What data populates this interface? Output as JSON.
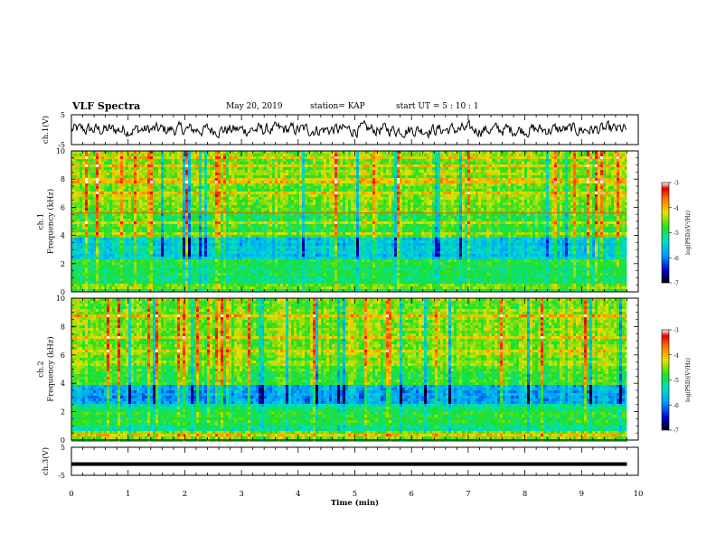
{
  "header": {
    "title": "VLF Spectra",
    "date": "May 20, 2019",
    "station": "station= KAP",
    "start": "start  UT =   5 : 10 : 1"
  },
  "chart_data": [
    {
      "type": "line",
      "name": "ch1-waveform",
      "ylabel": "ch.1(V)",
      "ylim": [
        -5,
        5
      ],
      "yticks": [
        "5",
        "-5"
      ],
      "xlim": [
        0,
        10
      ],
      "x_extent_data": [
        0,
        9.8
      ],
      "noise_amplitude_V": 2.5
    },
    {
      "type": "heatmap",
      "name": "ch1-spectrogram",
      "ylabel": "ch.1\nFrequency  (kHz)",
      "ylim": [
        0,
        10
      ],
      "yticks": [
        "0",
        "2",
        "4",
        "6",
        "8",
        "10"
      ],
      "xlim": [
        0,
        10
      ],
      "x_extent_data": [
        0,
        9.8
      ],
      "colorbar": {
        "label": "log(PSD)(V²/Hz)",
        "range": [
          -7,
          -3
        ],
        "ticks": [
          "-3",
          "-4",
          "-5",
          "-6",
          "-7"
        ]
      },
      "description_values": "log PSD ~ -4 to -5 above 4 kHz, ~ -5.5 to -6 between 2.5-4 kHz, band near 1.5-2.2 kHz ~ -5"
    },
    {
      "type": "heatmap",
      "name": "ch2-spectrogram",
      "ylabel": "ch.2\nFrequency  (kHz)",
      "ylim": [
        0,
        10
      ],
      "yticks": [
        "0",
        "2",
        "4",
        "6",
        "8",
        "10"
      ],
      "xlim": [
        0,
        10
      ],
      "x_extent_data": [
        0,
        9.8
      ],
      "colorbar": {
        "label": "log(PSD)(V²/Hz)",
        "range": [
          -7,
          -3
        ],
        "ticks": [
          "-3",
          "-4",
          "-5",
          "-6",
          "-7"
        ]
      }
    },
    {
      "type": "line",
      "name": "ch3-waveform",
      "ylabel": "ch.3(V)",
      "ylim": [
        -5,
        5
      ],
      "yticks": [
        "5",
        "-5"
      ],
      "xlim": [
        0,
        10
      ],
      "x_extent_data": [
        0,
        9.8
      ],
      "constant_value_V": -1
    }
  ],
  "xaxis": {
    "label": "Time  (min)",
    "ticks": [
      "0",
      "1",
      "2",
      "3",
      "4",
      "5",
      "6",
      "7",
      "8",
      "9",
      "10"
    ]
  }
}
